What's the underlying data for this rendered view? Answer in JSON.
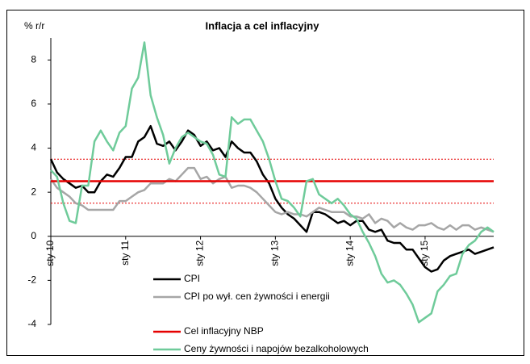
{
  "chart_data": {
    "type": "line",
    "title": "Inflacja a cel inflacyjny",
    "y_axis_label": "% r/r",
    "categories": [
      "sty 10",
      null,
      null,
      null,
      null,
      null,
      null,
      null,
      null,
      null,
      null,
      null,
      "sty 11",
      null,
      null,
      null,
      null,
      null,
      null,
      null,
      null,
      null,
      null,
      null,
      "sty 12",
      null,
      null,
      null,
      null,
      null,
      null,
      null,
      null,
      null,
      null,
      null,
      "sty 13",
      null,
      null,
      null,
      null,
      null,
      null,
      null,
      null,
      null,
      null,
      null,
      "sty 14",
      null,
      null,
      null,
      null,
      null,
      null,
      null,
      null,
      null,
      null,
      null,
      "sty 15",
      null,
      null,
      null,
      null,
      null,
      null,
      null,
      null,
      null,
      null,
      null
    ],
    "ylim": [
      -4,
      9
    ],
    "yticks": [
      -4,
      -2,
      0,
      2,
      4,
      6,
      8
    ],
    "band_lines": [
      1.5,
      3.5
    ],
    "band_color": "#e60000",
    "series": [
      {
        "name": "CPI",
        "color": "#000000",
        "values": [
          3.5,
          2.9,
          2.6,
          2.4,
          2.2,
          2.3,
          2.0,
          2.0,
          2.5,
          2.8,
          2.7,
          3.1,
          3.6,
          3.6,
          4.3,
          4.5,
          5.0,
          4.2,
          4.1,
          4.3,
          3.9,
          4.3,
          4.8,
          4.6,
          4.1,
          4.3,
          3.9,
          4.0,
          3.6,
          4.3,
          4.0,
          3.8,
          3.8,
          3.4,
          2.8,
          2.4,
          1.7,
          1.3,
          1.0,
          0.8,
          0.5,
          0.2,
          1.1,
          1.1,
          1.0,
          0.8,
          0.6,
          0.7,
          0.5,
          0.7,
          0.7,
          0.3,
          0.2,
          0.3,
          -0.2,
          -0.3,
          -0.3,
          -0.6,
          -0.6,
          -1.0,
          -1.4,
          -1.6,
          -1.5,
          -1.1,
          -0.9,
          -0.8,
          -0.7,
          -0.6,
          -0.8,
          -0.7,
          -0.6,
          -0.5
        ]
      },
      {
        "name": "CPI po wył. cen żywności i energii",
        "color": "#a6a6a6",
        "values": [
          2.6,
          2.2,
          2.0,
          1.8,
          1.5,
          1.4,
          1.2,
          1.2,
          1.2,
          1.2,
          1.2,
          1.6,
          1.6,
          1.8,
          2.0,
          2.1,
          2.4,
          2.4,
          2.4,
          2.6,
          2.5,
          2.8,
          3.1,
          3.1,
          2.6,
          2.7,
          2.4,
          2.6,
          2.7,
          2.2,
          2.3,
          2.3,
          2.2,
          2.0,
          1.7,
          1.4,
          1.1,
          1.0,
          1.1,
          1.0,
          1.0,
          0.9,
          1.1,
          1.3,
          1.2,
          1.1,
          1.1,
          1.1,
          0.9,
          0.9,
          0.8,
          1.0,
          0.6,
          0.8,
          0.7,
          0.4,
          0.6,
          0.4,
          0.3,
          0.5,
          0.5,
          0.6,
          0.4,
          0.3,
          0.5,
          0.3,
          0.5,
          0.5,
          0.3,
          0.4,
          0.3,
          0.2
        ]
      },
      {
        "name": "Cel inflacyjny NBP",
        "color": "#e60000",
        "values": [
          2.5,
          2.5,
          2.5,
          2.5,
          2.5,
          2.5,
          2.5,
          2.5,
          2.5,
          2.5,
          2.5,
          2.5,
          2.5,
          2.5,
          2.5,
          2.5,
          2.5,
          2.5,
          2.5,
          2.5,
          2.5,
          2.5,
          2.5,
          2.5,
          2.5,
          2.5,
          2.5,
          2.5,
          2.5,
          2.5,
          2.5,
          2.5,
          2.5,
          2.5,
          2.5,
          2.5,
          2.5,
          2.5,
          2.5,
          2.5,
          2.5,
          2.5,
          2.5,
          2.5,
          2.5,
          2.5,
          2.5,
          2.5,
          2.5,
          2.5,
          2.5,
          2.5,
          2.5,
          2.5,
          2.5,
          2.5,
          2.5,
          2.5,
          2.5,
          2.5,
          2.5,
          2.5,
          2.5,
          2.5,
          2.5,
          2.5,
          2.5,
          2.5,
          2.5,
          2.5,
          2.5,
          2.5
        ]
      },
      {
        "name": "Ceny żywności i napojów bezalkoholowych",
        "color": "#6fcb9a",
        "values": [
          3.0,
          2.7,
          1.5,
          0.7,
          0.6,
          2.3,
          2.3,
          4.3,
          4.8,
          4.3,
          3.9,
          4.7,
          5.0,
          6.7,
          7.2,
          8.8,
          6.4,
          5.4,
          4.6,
          3.3,
          4.0,
          4.5,
          4.7,
          4.5,
          4.3,
          4.2,
          3.7,
          2.8,
          2.7,
          5.4,
          5.1,
          5.3,
          5.3,
          4.8,
          4.3,
          3.5,
          2.5,
          1.7,
          1.6,
          1.3,
          0.9,
          2.5,
          2.6,
          1.9,
          1.7,
          1.5,
          1.7,
          1.4,
          1.0,
          0.8,
          0.2,
          -0.3,
          -0.9,
          -1.7,
          -2.1,
          -2.0,
          -2.2,
          -2.6,
          -3.1,
          -3.9,
          -3.7,
          -3.5,
          -2.5,
          -2.2,
          -1.8,
          -1.7,
          -0.8,
          -0.4,
          -0.2,
          0.2,
          0.4,
          0.2
        ]
      }
    ]
  }
}
